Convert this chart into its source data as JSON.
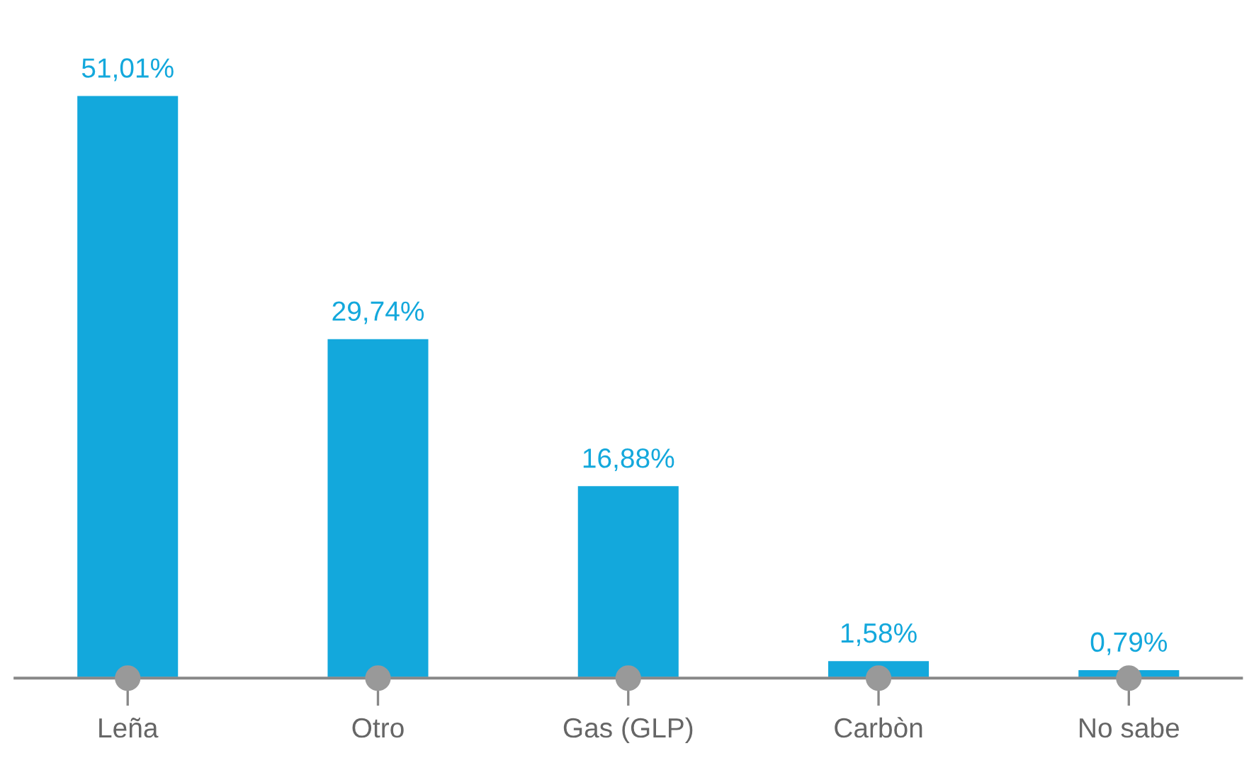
{
  "chart_data": {
    "type": "bar",
    "categories": [
      "Leña",
      "Otro",
      "Gas (GLP)",
      "Carbòn",
      "No sabe"
    ],
    "values": [
      51.01,
      29.74,
      16.88,
      1.58,
      0.79
    ],
    "value_labels": [
      "51,01%",
      "29,74%",
      "16,88%",
      "1,58%",
      "0,79%"
    ],
    "color": "#13a8dc",
    "grid": false,
    "legend": false
  }
}
